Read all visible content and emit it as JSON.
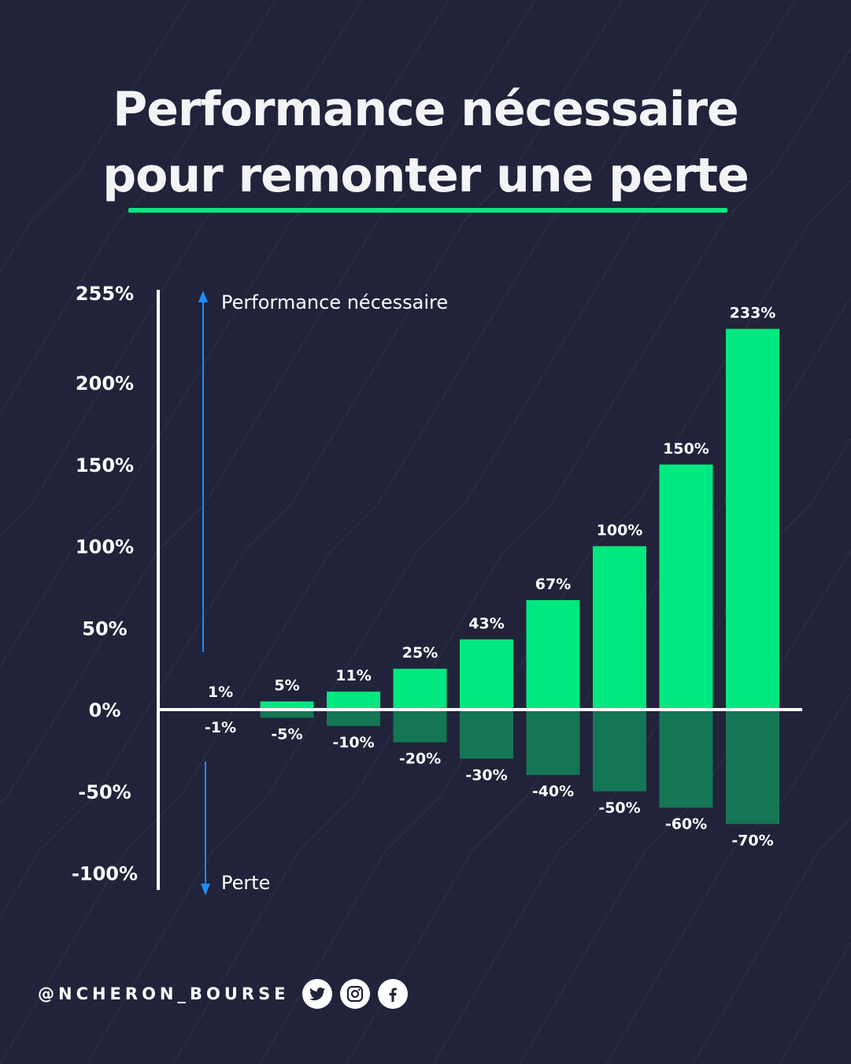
{
  "title": {
    "line1": "Performance nécessaire",
    "line2": "pour remonter une perte"
  },
  "colors": {
    "background": "#21233a",
    "gain": "#00e87f",
    "loss": "#147655",
    "accent_underline": "#00e87f",
    "arrow": "#1e8cff",
    "text": "#ffffff"
  },
  "chart_data": {
    "type": "bar",
    "categories": [
      "-1%",
      "-5%",
      "-10%",
      "-20%",
      "-30%",
      "-40%",
      "-50%",
      "-60%",
      "-70%"
    ],
    "series": [
      {
        "values": [
          1,
          5,
          11,
          25,
          43,
          67,
          100,
          150,
          233
        ],
        "labels": [
          "1%",
          "5%",
          "11%",
          "25%",
          "43%",
          "67%",
          "100%",
          "150%",
          "233%"
        ]
      },
      {
        "values": [
          -1,
          -5,
          -10,
          -20,
          -30,
          -40,
          -50,
          -60,
          -70
        ],
        "labels": [
          "-1%",
          "-5%",
          "-10%",
          "-20%",
          "-30%",
          "-40%",
          "-50%",
          "-60%",
          "-70%"
        ]
      }
    ],
    "ylim": [
      -100,
      255
    ],
    "yticks": [
      {
        "value": 255,
        "label": "255%"
      },
      {
        "value": 200,
        "label": "200%"
      },
      {
        "value": 150,
        "label": "150%"
      },
      {
        "value": 100,
        "label": "100%"
      },
      {
        "value": 50,
        "label": "50%"
      },
      {
        "value": 0,
        "label": "0%"
      },
      {
        "value": -50,
        "label": "-50%"
      },
      {
        "value": -100,
        "label": "-100%"
      }
    ],
    "annotations": {
      "up": "Performance nécessaire",
      "down": "Perte"
    },
    "grid": false,
    "legend": "none"
  },
  "footer": {
    "handle": "@NCHERON_BOURSE",
    "icons": [
      "twitter-icon",
      "instagram-icon",
      "facebook-icon"
    ]
  }
}
